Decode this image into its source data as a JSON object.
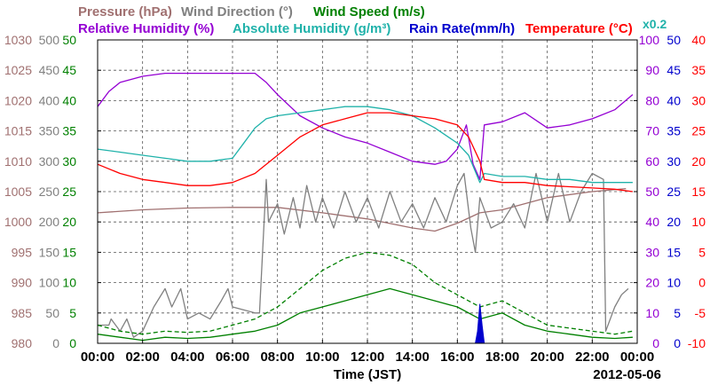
{
  "chart_data": {
    "type": "line",
    "title": "",
    "date_label": "2012-05-06",
    "xlabel": "Time (JST)",
    "x_ticks": [
      "00:00",
      "02:00",
      "04:00",
      "06:00",
      "08:00",
      "10:00",
      "12:00",
      "14:00",
      "16:00",
      "18:00",
      "20:00",
      "22:00",
      "00:00"
    ],
    "xlim_hours": [
      0,
      24
    ],
    "grid": true,
    "legend_placement": "top",
    "legend": [
      {
        "key": "pressure",
        "label": "Pressure (hPa)",
        "color": "#a07070"
      },
      {
        "key": "wind_dir",
        "label": "Wind Direction (°)",
        "color": "#808080"
      },
      {
        "key": "wind_speed",
        "label": "Wind Speed (m/s)",
        "color": "#008000"
      },
      {
        "key": "rh",
        "label": "Relative Humidity (%)",
        "color": "#9400d3"
      },
      {
        "key": "ah",
        "label": "Absolute Humidity (g/m³)",
        "color": "#20b2aa",
        "scale_note": "x0.2"
      },
      {
        "key": "rain",
        "label": "Rain Rate(mm/h)",
        "color": "#0000cd"
      },
      {
        "key": "temp",
        "label": "Temperature (°C)",
        "color": "#ff0000"
      }
    ],
    "axes": {
      "pressure": {
        "color": "#a07070",
        "min": 980,
        "max": 1030,
        "ticks": [
          980,
          985,
          990,
          995,
          1000,
          1005,
          1010,
          1015,
          1020,
          1025,
          1030
        ]
      },
      "wind_dir": {
        "color": "#808080",
        "min": 0,
        "max": 500,
        "ticks": [
          0,
          50,
          100,
          150,
          200,
          250,
          300,
          350,
          400,
          450,
          500
        ]
      },
      "wind_speed": {
        "color": "#008000",
        "min": 0,
        "max": 50,
        "ticks": [
          0,
          5,
          10,
          15,
          20,
          25,
          30,
          35,
          40,
          45,
          50
        ]
      },
      "rh": {
        "color": "#9400d3",
        "min": 0,
        "max": 100,
        "ticks": [
          0,
          10,
          20,
          30,
          40,
          50,
          60,
          70,
          80,
          90,
          100
        ]
      },
      "rain": {
        "color": "#0000cd",
        "min": 0,
        "max": 50,
        "ticks": [
          0,
          5,
          10,
          15,
          20,
          25,
          30,
          35,
          40,
          45,
          50
        ]
      },
      "temp": {
        "color": "#ff0000",
        "min": -10,
        "max": 40,
        "ticks": [
          -10,
          -5,
          0,
          5,
          10,
          15,
          20,
          25,
          30,
          35,
          40
        ]
      }
    },
    "series": [
      {
        "key": "pressure",
        "name": "Pressure (hPa)",
        "axis": "pressure",
        "color": "#a07070",
        "points": [
          [
            0,
            1001.5
          ],
          [
            2,
            1002
          ],
          [
            4,
            1002.3
          ],
          [
            6,
            1002.4
          ],
          [
            8,
            1002.4
          ],
          [
            10,
            1001.5
          ],
          [
            12,
            1000.5
          ],
          [
            14,
            999
          ],
          [
            15,
            998.5
          ],
          [
            16,
            999.8
          ],
          [
            17,
            1001.5
          ],
          [
            18,
            1002
          ],
          [
            20,
            1004
          ],
          [
            22,
            1005
          ],
          [
            23.5,
            1005.5
          ]
        ]
      },
      {
        "key": "wind_dir",
        "name": "Wind Direction (°)",
        "axis": "wind_dir",
        "color": "#808080",
        "points": [
          [
            0,
            30
          ],
          [
            0.5,
            30
          ],
          [
            0.6,
            40
          ],
          [
            1,
            20
          ],
          [
            1.3,
            40
          ],
          [
            1.6,
            10
          ],
          [
            2,
            20
          ],
          [
            2.5,
            60
          ],
          [
            3,
            90
          ],
          [
            3.3,
            60
          ],
          [
            3.7,
            90
          ],
          [
            4,
            40
          ],
          [
            4.5,
            50
          ],
          [
            5,
            40
          ],
          [
            5.5,
            70
          ],
          [
            5.8,
            90
          ],
          [
            6,
            60
          ],
          [
            6.5,
            55
          ],
          [
            7,
            50
          ],
          [
            7.2,
            50
          ],
          [
            7.5,
            270
          ],
          [
            7.6,
            200
          ],
          [
            8,
            230
          ],
          [
            8.3,
            180
          ],
          [
            8.7,
            240
          ],
          [
            9,
            190
          ],
          [
            9.3,
            260
          ],
          [
            9.7,
            200
          ],
          [
            10,
            240
          ],
          [
            10.5,
            190
          ],
          [
            11,
            250
          ],
          [
            11.5,
            200
          ],
          [
            12,
            240
          ],
          [
            12.5,
            190
          ],
          [
            13,
            250
          ],
          [
            13.5,
            200
          ],
          [
            14,
            230
          ],
          [
            14.5,
            190
          ],
          [
            15,
            240
          ],
          [
            15.5,
            200
          ],
          [
            16,
            260
          ],
          [
            16.3,
            280
          ],
          [
            16.6,
            190
          ],
          [
            16.8,
            150
          ],
          [
            17,
            240
          ],
          [
            17.5,
            190
          ],
          [
            18,
            200
          ],
          [
            18.5,
            230
          ],
          [
            19,
            190
          ],
          [
            19.5,
            280
          ],
          [
            20,
            200
          ],
          [
            20.5,
            280
          ],
          [
            21,
            200
          ],
          [
            21.5,
            250
          ],
          [
            22,
            280
          ],
          [
            22.5,
            270
          ],
          [
            22.6,
            20
          ],
          [
            23,
            60
          ],
          [
            23.3,
            80
          ],
          [
            23.6,
            90
          ]
        ]
      },
      {
        "key": "wind_speed",
        "name": "Wind Speed (m/s)",
        "axis": "wind_speed",
        "color": "#008000",
        "points": [
          [
            0,
            1.5
          ],
          [
            1,
            1
          ],
          [
            2,
            0.5
          ],
          [
            3,
            1
          ],
          [
            4,
            0.8
          ],
          [
            5,
            1
          ],
          [
            6,
            1.5
          ],
          [
            7,
            2
          ],
          [
            8,
            3
          ],
          [
            9,
            5
          ],
          [
            10,
            6
          ],
          [
            11,
            7
          ],
          [
            12,
            8
          ],
          [
            13,
            9
          ],
          [
            14,
            8
          ],
          [
            15,
            7
          ],
          [
            16,
            6
          ],
          [
            17,
            4
          ],
          [
            18,
            5
          ],
          [
            19,
            3
          ],
          [
            20,
            2
          ],
          [
            21,
            1.5
          ],
          [
            22,
            1
          ],
          [
            23,
            0.8
          ],
          [
            23.8,
            1
          ]
        ]
      },
      {
        "key": "wind_gust",
        "name": "",
        "axis": "wind_speed",
        "color": "#008000",
        "dashed": true,
        "points": [
          [
            0,
            3
          ],
          [
            1,
            2
          ],
          [
            2,
            1.5
          ],
          [
            3,
            2
          ],
          [
            4,
            1.8
          ],
          [
            5,
            2
          ],
          [
            6,
            3
          ],
          [
            7,
            4
          ],
          [
            8,
            6
          ],
          [
            9,
            9
          ],
          [
            10,
            12
          ],
          [
            11,
            14
          ],
          [
            12,
            15
          ],
          [
            13,
            14.5
          ],
          [
            14,
            13
          ],
          [
            15,
            10
          ],
          [
            16,
            8
          ],
          [
            17,
            6
          ],
          [
            18,
            7
          ],
          [
            19,
            5
          ],
          [
            20,
            3
          ],
          [
            21,
            2.5
          ],
          [
            22,
            2
          ],
          [
            23,
            1.5
          ],
          [
            23.8,
            2
          ]
        ]
      },
      {
        "key": "rh",
        "name": "Relative Humidity (%)",
        "axis": "rh",
        "color": "#9400d3",
        "points": [
          [
            0,
            78
          ],
          [
            0.5,
            83
          ],
          [
            1,
            86
          ],
          [
            2,
            88
          ],
          [
            3,
            89
          ],
          [
            4,
            89
          ],
          [
            5,
            89
          ],
          [
            6,
            89
          ],
          [
            7,
            89
          ],
          [
            7.5,
            86
          ],
          [
            8,
            82
          ],
          [
            9,
            75
          ],
          [
            10,
            71
          ],
          [
            11,
            68
          ],
          [
            12,
            66
          ],
          [
            13,
            63
          ],
          [
            14,
            60
          ],
          [
            15,
            59
          ],
          [
            15.5,
            60
          ],
          [
            16,
            64
          ],
          [
            16.4,
            72
          ],
          [
            16.7,
            59
          ],
          [
            17,
            54
          ],
          [
            17.2,
            72
          ],
          [
            18,
            73
          ],
          [
            19,
            76
          ],
          [
            20,
            71
          ],
          [
            21,
            72
          ],
          [
            22,
            74
          ],
          [
            23,
            77
          ],
          [
            23.8,
            82
          ]
        ]
      },
      {
        "key": "ah",
        "name": "Absolute Humidity (g/m³)",
        "axis": "rh",
        "color": "#20b2aa",
        "points": [
          [
            0,
            64
          ],
          [
            1,
            63
          ],
          [
            2,
            62
          ],
          [
            3,
            61
          ],
          [
            4,
            60
          ],
          [
            5,
            60
          ],
          [
            6,
            61
          ],
          [
            6.5,
            66
          ],
          [
            7,
            71
          ],
          [
            7.5,
            74
          ],
          [
            8,
            75
          ],
          [
            9,
            76
          ],
          [
            10,
            77
          ],
          [
            11,
            78
          ],
          [
            12,
            78
          ],
          [
            13,
            77
          ],
          [
            14,
            75
          ],
          [
            15,
            71
          ],
          [
            16,
            66
          ],
          [
            16.5,
            62
          ],
          [
            17,
            53
          ],
          [
            17.2,
            56
          ],
          [
            18,
            55
          ],
          [
            19,
            55
          ],
          [
            20,
            54
          ],
          [
            21,
            54
          ],
          [
            22,
            53
          ],
          [
            23,
            53
          ],
          [
            23.8,
            53
          ]
        ]
      },
      {
        "key": "temp",
        "name": "Temperature (°C)",
        "axis": "temp",
        "color": "#ff0000",
        "points": [
          [
            0,
            19.5
          ],
          [
            1,
            18
          ],
          [
            2,
            17
          ],
          [
            3,
            16.5
          ],
          [
            4,
            16
          ],
          [
            5,
            16
          ],
          [
            6,
            16.5
          ],
          [
            7,
            18
          ],
          [
            8,
            21
          ],
          [
            9,
            24
          ],
          [
            10,
            26
          ],
          [
            11,
            27
          ],
          [
            12,
            28
          ],
          [
            13,
            28
          ],
          [
            14,
            27.5
          ],
          [
            15,
            27
          ],
          [
            16,
            26
          ],
          [
            16.5,
            24
          ],
          [
            17,
            20
          ],
          [
            17.2,
            17
          ],
          [
            18,
            16.5
          ],
          [
            19,
            16.5
          ],
          [
            20,
            16
          ],
          [
            21,
            15.8
          ],
          [
            22,
            15.6
          ],
          [
            23,
            15.4
          ],
          [
            23.8,
            15
          ]
        ]
      },
      {
        "key": "rain",
        "name": "Rain Rate(mm/h)",
        "axis": "rain",
        "color": "#0000cd",
        "fill": true,
        "points": [
          [
            16.8,
            0
          ],
          [
            16.9,
            2
          ],
          [
            17.0,
            6.5
          ],
          [
            17.1,
            3
          ],
          [
            17.2,
            0
          ]
        ]
      }
    ]
  }
}
